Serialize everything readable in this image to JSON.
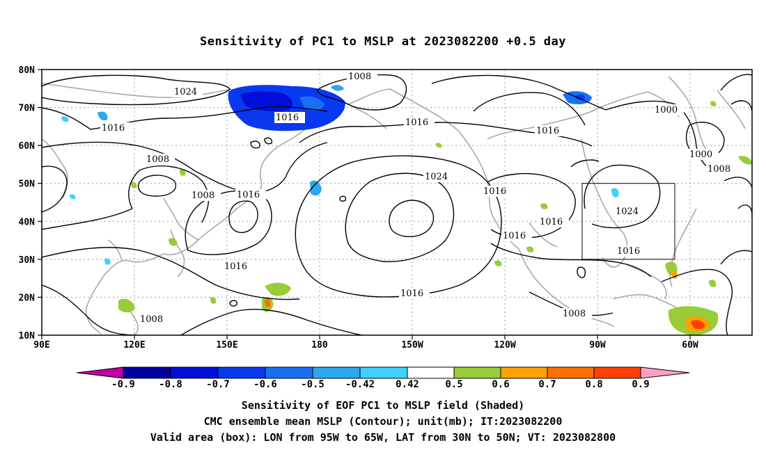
{
  "title": "Sensitivity of PC1 to MSLP at 2023082200 +0.5 day",
  "axes": {
    "lat_labels": [
      "80N",
      "70N",
      "60N",
      "50N",
      "40N",
      "30N",
      "20N",
      "10N"
    ],
    "lon_labels": [
      "90E",
      "120E",
      "150E",
      "180",
      "150W",
      "120W",
      "90W",
      "60W"
    ]
  },
  "colorbar": {
    "tick_labels": [
      "-0.9",
      "-0.8",
      "-0.7",
      "-0.6",
      "-0.5",
      "-0.42",
      "0.42",
      "0.5",
      "0.6",
      "0.7",
      "0.8",
      "0.9"
    ],
    "colors": [
      "#c000a0",
      "#0000a0",
      "#0010d8",
      "#0838f0",
      "#1870f0",
      "#2aa8f0",
      "#40d0ff",
      "#ffffff",
      "#98cc38",
      "#ffa000",
      "#ff7000",
      "#ff4000",
      "#ff0000",
      "#f8a0c8"
    ]
  },
  "contours": {
    "labels": [
      "1024",
      "1008",
      "1016",
      "1016",
      "1000",
      "1000",
      "1008",
      "1008",
      "1008",
      "1016",
      "1016",
      "1024",
      "1016",
      "1016",
      "1024",
      "1016",
      "1016",
      "1016",
      "1008",
      "1016",
      "1008"
    ]
  },
  "valid_box": {
    "lon_range": [
      "95W",
      "65W"
    ],
    "lat_range": [
      "30N",
      "50N"
    ]
  },
  "caption": {
    "line1": "Sensitivity of EOF PC1 to MSLP field (Shaded)",
    "line2": "CMC ensemble mean MSLP (Contour); unit(mb); IT:2023082200",
    "line3": "Valid area (box): LON from 95W to 65W, LAT from 30N to 50N; VT: 2023082800"
  }
}
